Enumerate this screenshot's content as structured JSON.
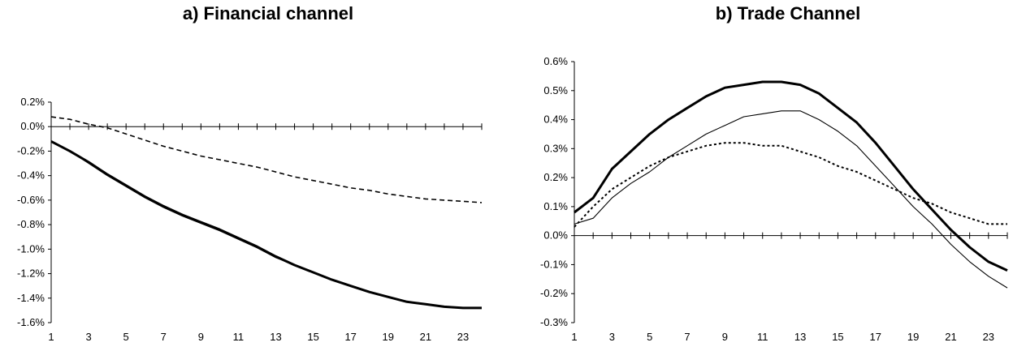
{
  "chart_data": [
    {
      "type": "line",
      "title": "a) Financial channel",
      "x": [
        1,
        2,
        3,
        4,
        5,
        6,
        7,
        8,
        9,
        10,
        11,
        12,
        13,
        14,
        15,
        16,
        17,
        18,
        19,
        20,
        21,
        22,
        23,
        24
      ],
      "x_tick_labels": [
        "1",
        "3",
        "5",
        "7",
        "9",
        "11",
        "13",
        "15",
        "17",
        "19",
        "21",
        "23"
      ],
      "y_tick_labels": [
        "0.2%",
        "0.0%",
        "-0.2%",
        "-0.4%",
        "-0.6%",
        "-0.8%",
        "-1.0%",
        "-1.2%",
        "-1.4%",
        "-1.6%"
      ],
      "ylim": [
        -1.6,
        0.2
      ],
      "xlim": [
        1,
        24
      ],
      "y_ticks": [
        0.2,
        0.0,
        -0.2,
        -0.4,
        -0.6,
        -0.8,
        -1.0,
        -1.2,
        -1.4,
        -1.6
      ],
      "grid": false,
      "series": [
        {
          "style": "thick-solid",
          "values": [
            -0.12,
            -0.2,
            -0.29,
            -0.39,
            -0.48,
            -0.57,
            -0.65,
            -0.72,
            -0.78,
            -0.84,
            -0.91,
            -0.98,
            -1.06,
            -1.13,
            -1.19,
            -1.25,
            -1.3,
            -1.35,
            -1.39,
            -1.43,
            -1.45,
            -1.47,
            -1.48,
            -1.48
          ]
        },
        {
          "style": "thin-solid",
          "values": [
            -0.12,
            -0.2,
            -0.3,
            -0.4,
            -0.49,
            -0.58,
            -0.66,
            -0.73,
            -0.79,
            -0.85,
            -0.92,
            -0.99,
            -1.07,
            -1.13,
            -1.19,
            -1.25,
            -1.3,
            -1.35,
            -1.39,
            -1.43,
            -1.45,
            -1.47,
            -1.48,
            -1.48
          ]
        },
        {
          "style": "dashed",
          "values": [
            0.08,
            0.06,
            0.02,
            -0.01,
            -0.06,
            -0.11,
            -0.16,
            -0.2,
            -0.24,
            -0.27,
            -0.3,
            -0.33,
            -0.37,
            -0.41,
            -0.44,
            -0.47,
            -0.5,
            -0.52,
            -0.55,
            -0.57,
            -0.59,
            -0.6,
            -0.61,
            -0.62
          ]
        }
      ]
    },
    {
      "type": "line",
      "title": "b) Trade Channel",
      "x": [
        1,
        2,
        3,
        4,
        5,
        6,
        7,
        8,
        9,
        10,
        11,
        12,
        13,
        14,
        15,
        16,
        17,
        18,
        19,
        20,
        21,
        22,
        23,
        24
      ],
      "x_tick_labels": [
        "1",
        "3",
        "5",
        "7",
        "9",
        "11",
        "13",
        "15",
        "17",
        "19",
        "21",
        "23"
      ],
      "y_tick_labels": [
        "0.6%",
        "0.5%",
        "0.4%",
        "0.3%",
        "0.2%",
        "0.1%",
        "0.0%",
        "-0.1%",
        "-0.2%",
        "-0.3%"
      ],
      "ylim": [
        -0.3,
        0.6
      ],
      "xlim": [
        1,
        24
      ],
      "y_ticks": [
        0.6,
        0.5,
        0.4,
        0.3,
        0.2,
        0.1,
        0.0,
        -0.1,
        -0.2,
        -0.3
      ],
      "grid": false,
      "series": [
        {
          "style": "thick-solid",
          "values": [
            0.08,
            0.13,
            0.23,
            0.29,
            0.35,
            0.4,
            0.44,
            0.48,
            0.51,
            0.52,
            0.53,
            0.53,
            0.52,
            0.49,
            0.44,
            0.39,
            0.32,
            0.24,
            0.16,
            0.09,
            0.02,
            -0.04,
            -0.09,
            -0.12
          ]
        },
        {
          "style": "thin-solid",
          "values": [
            0.04,
            0.06,
            0.13,
            0.18,
            0.22,
            0.27,
            0.31,
            0.35,
            0.38,
            0.41,
            0.42,
            0.43,
            0.43,
            0.4,
            0.36,
            0.31,
            0.24,
            0.17,
            0.1,
            0.04,
            -0.03,
            -0.09,
            -0.14,
            -0.18
          ]
        },
        {
          "style": "dotted-dashed",
          "values": [
            0.03,
            0.1,
            0.16,
            0.2,
            0.24,
            0.27,
            0.29,
            0.31,
            0.32,
            0.32,
            0.31,
            0.31,
            0.29,
            0.27,
            0.24,
            0.22,
            0.19,
            0.16,
            0.13,
            0.11,
            0.08,
            0.06,
            0.04,
            0.04
          ]
        }
      ]
    }
  ]
}
